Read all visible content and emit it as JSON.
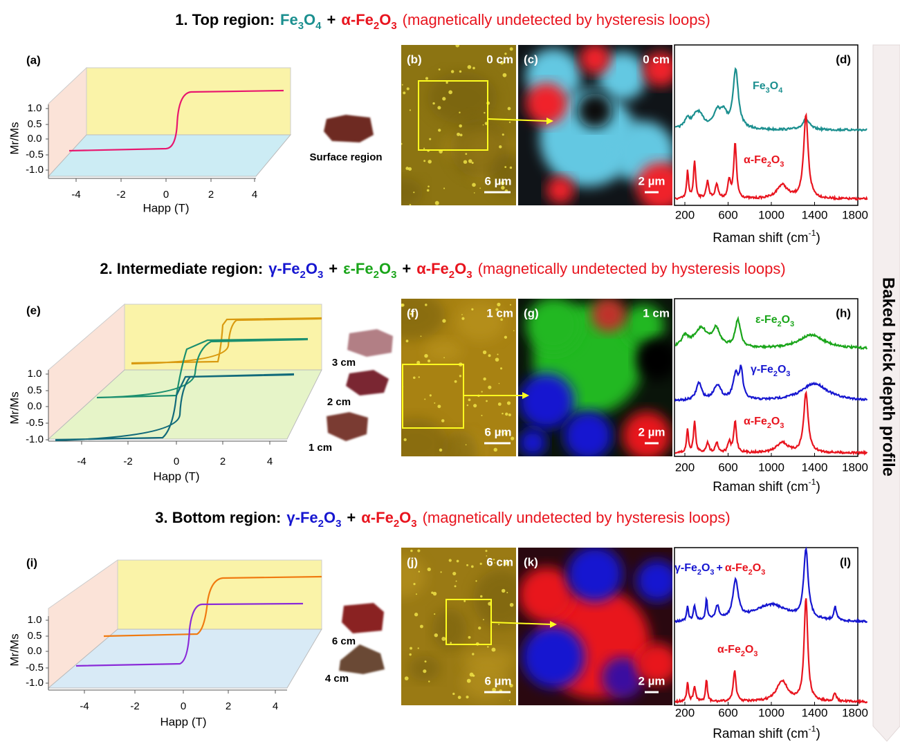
{
  "sidebar": "Baked brick depth profile",
  "rows": [
    {
      "title": {
        "prefix": "1. Top region:",
        "joiner": "+",
        "note": "(magnetically undetected by hysteresis loops)",
        "phases": [
          {
            "text": "Fe3O4",
            "color": "#1b8f8f"
          },
          {
            "text": "α-Fe2O3",
            "color": "#e8141e"
          }
        ]
      },
      "hysteresis": {
        "label": "(a)",
        "y_label": "Mr/Ms",
        "x_label": "Happ (T)",
        "yticks": [
          "1.0",
          "0.5",
          "0.0",
          "-0.5",
          "-1.0"
        ],
        "xticks": [
          "-4",
          "-2",
          "0",
          "2",
          "4"
        ],
        "samples": [
          "Surface region"
        ]
      },
      "micrographs": [
        {
          "label": "(b)",
          "depth": "0 cm",
          "scale": "6 µm"
        },
        {
          "label": "(c)",
          "depth": "0 cm",
          "scale": "2 µm"
        }
      ],
      "spectra": {
        "label": "(d)",
        "xticks": [
          "200",
          "600",
          "1000",
          "1400",
          "1800"
        ],
        "x_label": {
          "text": "Raman shift (cm",
          "sup": "-1",
          "end": ")"
        },
        "traces": [
          {
            "labels": [
              {
                "text": "Fe3O4",
                "color": "#1b8f8f"
              }
            ]
          },
          {
            "labels": [
              {
                "text": "α-Fe2O3",
                "color": "#e8141e"
              }
            ]
          }
        ]
      }
    },
    {
      "title": {
        "prefix": "2. Intermediate region:",
        "joiner": "+",
        "note": "(magnetically undetected by hysteresis loops)",
        "phases": [
          {
            "text": "γ-Fe2O3",
            "color": "#1616d0"
          },
          {
            "text": "ε-Fe2O3",
            "color": "#1aa51a"
          },
          {
            "text": "α-Fe2O3",
            "color": "#e8141e"
          }
        ]
      },
      "hysteresis": {
        "label": "(e)",
        "y_label": "Mr/Ms",
        "x_label": "Happ (T)",
        "yticks": [
          "1.0",
          "0.5",
          "0.0",
          "-0.5",
          "-1.0"
        ],
        "xticks": [
          "-4",
          "-2",
          "0",
          "2",
          "4"
        ],
        "samples": [
          "3 cm",
          "2 cm",
          "1 cm"
        ]
      },
      "micrographs": [
        {
          "label": "(f)",
          "depth": "1 cm",
          "scale": "6 µm"
        },
        {
          "label": "(g)",
          "depth": "1 cm",
          "scale": "2 µm"
        }
      ],
      "spectra": {
        "label": "(h)",
        "xticks": [
          "200",
          "600",
          "1000",
          "1400",
          "1800"
        ],
        "x_label": {
          "text": "Raman shift (cm",
          "sup": "-1",
          "end": ")"
        },
        "traces": [
          {
            "labels": [
              {
                "text": "ε-Fe2O3",
                "color": "#1aa51a"
              }
            ]
          },
          {
            "labels": [
              {
                "text": "γ-Fe2O3",
                "color": "#1616d0"
              }
            ]
          },
          {
            "labels": [
              {
                "text": "α-Fe2O3",
                "color": "#e8141e"
              }
            ]
          }
        ]
      }
    },
    {
      "title": {
        "prefix": "3. Bottom region:",
        "joiner": "+",
        "note": "(magnetically undetected by hysteresis loops)",
        "phases": [
          {
            "text": "γ-Fe2O3",
            "color": "#1616d0"
          },
          {
            "text": "α-Fe2O3",
            "color": "#e8141e"
          }
        ]
      },
      "hysteresis": {
        "label": "(i)",
        "y_label": "Mr/Ms",
        "x_label": "Happ (T)",
        "yticks": [
          "1.0",
          "0.5",
          "0.0",
          "-0.5",
          "-1.0"
        ],
        "xticks": [
          "-4",
          "-2",
          "0",
          "2",
          "4"
        ],
        "samples": [
          "6 cm",
          "4 cm"
        ]
      },
      "micrographs": [
        {
          "label": "(j)",
          "depth": "6 cm",
          "scale": "6 µm"
        },
        {
          "label": "(k)",
          "scale": "2 µm"
        }
      ],
      "spectra": {
        "label": "(l)",
        "xticks": [
          "200",
          "600",
          "1000",
          "1400",
          "1800"
        ],
        "x_label": {
          "text": "Raman shift (cm",
          "sup": "-1",
          "end": ")"
        },
        "traces": [
          {
            "labels": [
              {
                "text": "γ-Fe2O3",
                "color": "#1616d0"
              },
              {
                "text": "+",
                "color": "#1616d0"
              },
              {
                "text": "α-Fe2O3",
                "color": "#e8141e"
              }
            ]
          },
          {
            "labels": [
              {
                "text": "α-Fe2O3",
                "color": "#e8141e"
              }
            ]
          }
        ]
      }
    }
  ]
}
